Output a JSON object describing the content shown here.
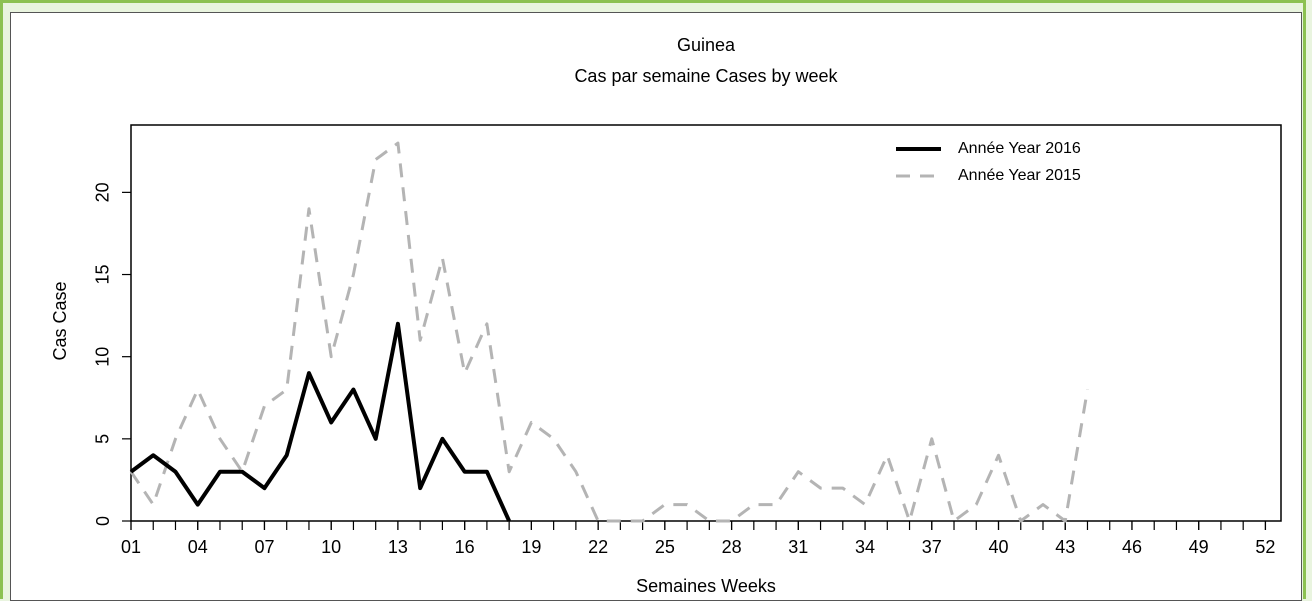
{
  "chart_data": {
    "type": "line",
    "title": "Guinea",
    "subtitle": "Cas par semaine Cases by week",
    "x_label": "Semaines Weeks",
    "y_label": "Cas Case",
    "x": [
      1,
      2,
      3,
      4,
      5,
      6,
      7,
      8,
      9,
      10,
      11,
      12,
      13,
      14,
      15,
      16,
      17,
      18,
      19,
      20,
      21,
      22,
      23,
      24,
      25,
      26,
      27,
      28,
      29,
      30,
      31,
      32,
      33,
      34,
      35,
      36,
      37,
      38,
      39,
      40,
      41,
      42,
      43,
      44,
      45,
      46,
      47,
      48,
      49,
      50,
      51,
      52
    ],
    "series": [
      {
        "name": "Année Year 2016",
        "color": "#000000",
        "dash": false,
        "values": [
          3,
          4,
          3,
          1,
          3,
          3,
          2,
          4,
          9,
          6,
          8,
          5,
          12,
          2,
          5,
          3,
          3,
          0,
          null,
          null,
          null,
          null,
          null,
          null,
          null,
          null,
          null,
          null,
          null,
          null,
          null,
          null,
          null,
          null,
          null,
          null,
          null,
          null,
          null,
          null,
          null,
          null,
          null,
          null,
          null,
          null,
          null,
          null,
          null,
          null,
          null,
          null
        ]
      },
      {
        "name": "Année Year 2015",
        "color": "#b4b4b4",
        "dash": true,
        "values": [
          3,
          1,
          5,
          8,
          5,
          3,
          7,
          8,
          19,
          10,
          15,
          22,
          23,
          11,
          16,
          9,
          12,
          3,
          6,
          5,
          3,
          0,
          0,
          0,
          1,
          1,
          0,
          0,
          1,
          1,
          3,
          2,
          2,
          1,
          4,
          0,
          5,
          0,
          1,
          4,
          0,
          1,
          0,
          8,
          null,
          null,
          null,
          null,
          null,
          null,
          null,
          null
        ]
      }
    ],
    "xlim": [
      1,
      52.7
    ],
    "ylim": [
      0,
      24.1
    ],
    "xticks": [
      {
        "value": 1,
        "label": "01"
      },
      {
        "value": 4,
        "label": "04"
      },
      {
        "value": 7,
        "label": "07"
      },
      {
        "value": 10,
        "label": "10"
      },
      {
        "value": 13,
        "label": "13"
      },
      {
        "value": 16,
        "label": "16"
      },
      {
        "value": 19,
        "label": "19"
      },
      {
        "value": 22,
        "label": "22"
      },
      {
        "value": 25,
        "label": "25"
      },
      {
        "value": 28,
        "label": "28"
      },
      {
        "value": 31,
        "label": "31"
      },
      {
        "value": 34,
        "label": "34"
      },
      {
        "value": 37,
        "label": "37"
      },
      {
        "value": 40,
        "label": "40"
      },
      {
        "value": 43,
        "label": "43"
      },
      {
        "value": 46,
        "label": "46"
      },
      {
        "value": 49,
        "label": "49"
      },
      {
        "value": 52,
        "label": "52"
      }
    ],
    "yticks": [
      0,
      5,
      10,
      15,
      20
    ],
    "legend": "top-right"
  }
}
